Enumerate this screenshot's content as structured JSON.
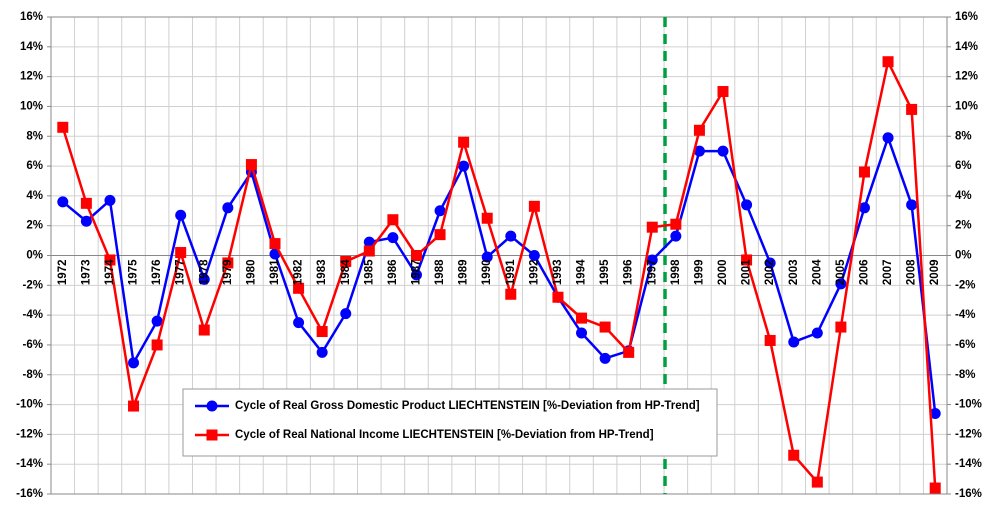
{
  "chart_data": {
    "type": "line",
    "categories": [
      "1972",
      "1973",
      "1974",
      "1975",
      "1976",
      "1977",
      "1978",
      "1979",
      "1980",
      "1981",
      "1982",
      "1983",
      "1984",
      "1985",
      "1986",
      "1987",
      "1988",
      "1989",
      "1990",
      "1991",
      "1992",
      "1993",
      "1994",
      "1995",
      "1996",
      "1997",
      "1998",
      "1999",
      "2000",
      "2001",
      "2002",
      "2003",
      "2004",
      "2005",
      "2006",
      "2007",
      "2008",
      "2009"
    ],
    "series": [
      {
        "name": "Cycle of Real Gross Domestic Product LIECHTENSTEIN [%-Deviation from HP-Trend]",
        "color": "#0000ff",
        "marker": "circle",
        "values": [
          3.6,
          2.3,
          3.7,
          -7.2,
          -4.4,
          2.7,
          -1.6,
          3.2,
          5.6,
          0.1,
          -4.5,
          -6.5,
          -3.9,
          0.9,
          1.2,
          -1.3,
          3.0,
          6.0,
          -0.1,
          1.3,
          0,
          -2.8,
          -5.2,
          -6.9,
          -6.4,
          -0.3,
          1.3,
          7.0,
          7.0,
          3.4,
          -0.5,
          -5.8,
          -5.2,
          -1.9,
          3.2,
          7.9,
          3.4,
          -10.6
        ]
      },
      {
        "name": "Cycle of Real National Income LIECHTENSTEIN [%-Deviation from HP-Trend]",
        "color": "#ff0000",
        "marker": "square",
        "values": [
          8.6,
          3.5,
          -0.3,
          -10.1,
          -6.0,
          0.2,
          -5.0,
          -0.5,
          6.1,
          0.8,
          -2.2,
          -5.1,
          -0.4,
          0.3,
          2.4,
          0,
          1.4,
          7.6,
          2.5,
          -2.6,
          3.3,
          -2.8,
          -4.2,
          -4.8,
          -6.5,
          1.9,
          2.1,
          8.4,
          11.0,
          -0.3,
          -5.7,
          -13.4,
          -15.2,
          -4.8,
          5.6,
          13.0,
          9.8,
          -15.6
        ]
      }
    ],
    "ylim": [
      -16,
      16
    ],
    "yticks": [
      {
        "value": -16,
        "label": "-16%"
      },
      {
        "value": -14,
        "label": "-14%"
      },
      {
        "value": -12,
        "label": "-12%"
      },
      {
        "value": -10,
        "label": "-10%"
      },
      {
        "value": -8,
        "label": "-8%"
      },
      {
        "value": -6,
        "label": "-6%"
      },
      {
        "value": -4,
        "label": "-4%"
      },
      {
        "value": -2,
        "label": "-2%"
      },
      {
        "value": 0,
        "label": "0%"
      },
      {
        "value": 2,
        "label": "2%"
      },
      {
        "value": 4,
        "label": "4%"
      },
      {
        "value": 6,
        "label": "6%"
      },
      {
        "value": 8,
        "label": "8%"
      },
      {
        "value": 10,
        "label": "10%"
      },
      {
        "value": 12,
        "label": "12%"
      },
      {
        "value": 14,
        "label": "14%"
      },
      {
        "value": 16,
        "label": "16%"
      }
    ],
    "y2lim": [
      -16,
      16
    ],
    "y2ticks": [
      {
        "value": -16,
        "label": "-16%"
      },
      {
        "value": -14,
        "label": "-14%"
      },
      {
        "value": -12,
        "label": "-12%"
      },
      {
        "value": -10,
        "label": "-10%"
      },
      {
        "value": -8,
        "label": "-8%"
      },
      {
        "value": -6,
        "label": "-6%"
      },
      {
        "value": -4,
        "label": "-4%"
      },
      {
        "value": -2,
        "label": "-2%"
      },
      {
        "value": 0,
        "label": "0%"
      },
      {
        "value": 2,
        "label": "2%"
      },
      {
        "value": 4,
        "label": "4%"
      },
      {
        "value": 6,
        "label": "6%"
      },
      {
        "value": 8,
        "label": "8%"
      },
      {
        "value": 10,
        "label": "10%"
      },
      {
        "value": 12,
        "label": "12%"
      },
      {
        "value": 14,
        "label": "14%"
      },
      {
        "value": 16,
        "label": "16%"
      }
    ],
    "grid": true
  }
}
